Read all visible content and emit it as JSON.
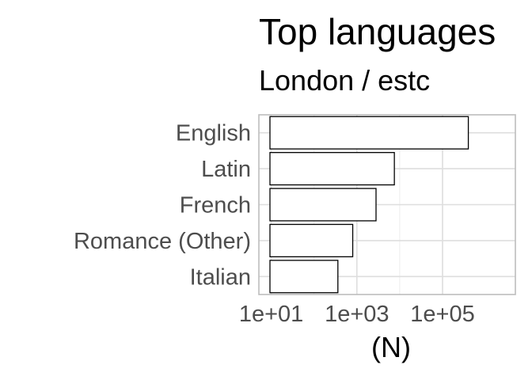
{
  "chart_data": {
    "type": "bar",
    "orientation": "horizontal",
    "title": "Top languages",
    "subtitle": "London / estc",
    "xlabel": "(N)",
    "ylabel": "",
    "x_scale": "log10",
    "xlim": [
      1,
      600000
    ],
    "x_ticks": [
      10,
      1000,
      100000
    ],
    "x_tick_labels": [
      "1e+01",
      "1e+03",
      "1e+05"
    ],
    "categories": [
      "English",
      "Latin",
      "French",
      "Romance (Other)",
      "Italian"
    ],
    "values": [
      400000,
      7500,
      2800,
      800,
      360
    ],
    "bar_fill": "#ffffff",
    "bar_stroke": "#000000",
    "grid": true,
    "legend": "none"
  }
}
